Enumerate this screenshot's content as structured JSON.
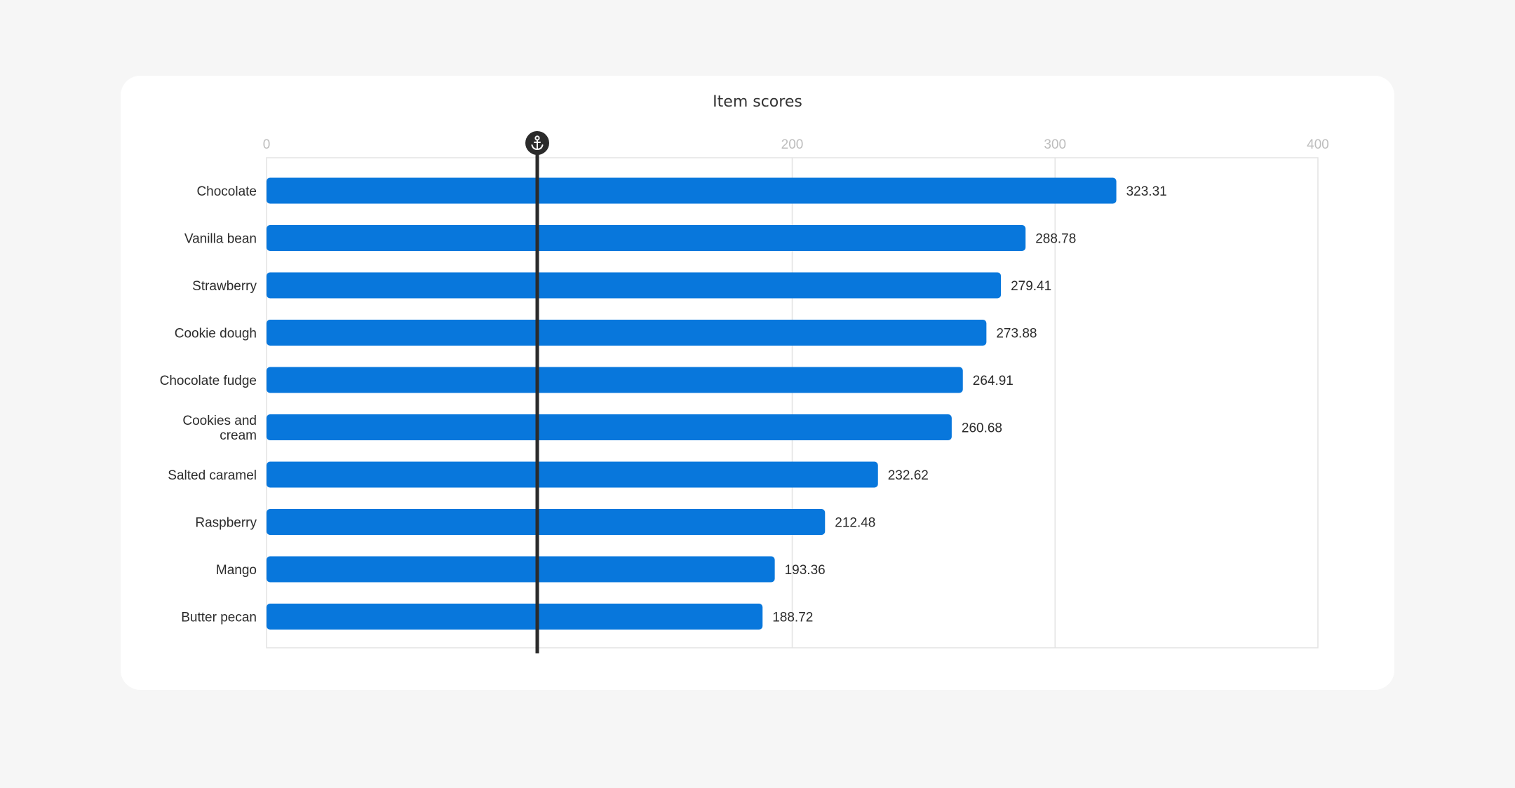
{
  "chart_data": {
    "type": "bar",
    "orientation": "horizontal",
    "title": "Item scores",
    "categories": [
      "Chocolate",
      "Vanilla bean",
      "Strawberry",
      "Cookie dough",
      "Chocolate fudge",
      "Cookies and cream",
      "Salted caramel",
      "Raspberry",
      "Mango",
      "Butter pecan"
    ],
    "category_lines": [
      [
        "Chocolate"
      ],
      [
        "Vanilla bean"
      ],
      [
        "Strawberry"
      ],
      [
        "Cookie dough"
      ],
      [
        "Chocolate fudge"
      ],
      [
        "Cookies and",
        "cream"
      ],
      [
        "Salted caramel"
      ],
      [
        "Raspberry"
      ],
      [
        "Mango"
      ],
      [
        "Butter pecan"
      ]
    ],
    "values": [
      323.31,
      288.78,
      279.41,
      273.88,
      264.91,
      260.68,
      232.62,
      212.48,
      193.36,
      188.72
    ],
    "value_labels": [
      "323.31",
      "288.78",
      "279.41",
      "273.88",
      "264.91",
      "260.68",
      "232.62",
      "212.48",
      "193.36",
      "188.72"
    ],
    "xlim": [
      0,
      400
    ],
    "x_ticks": [
      0,
      200,
      300,
      400
    ],
    "x_tick_labels": [
      "0",
      "200",
      "300",
      "400"
    ],
    "x_gridlines": [
      200,
      300
    ],
    "axis_position": "top",
    "reference_line": {
      "value": 103,
      "icon": "anchor-icon",
      "color": "#2b2b2b"
    },
    "bar_color": "#0877dc",
    "grid": true,
    "legend": "none"
  }
}
